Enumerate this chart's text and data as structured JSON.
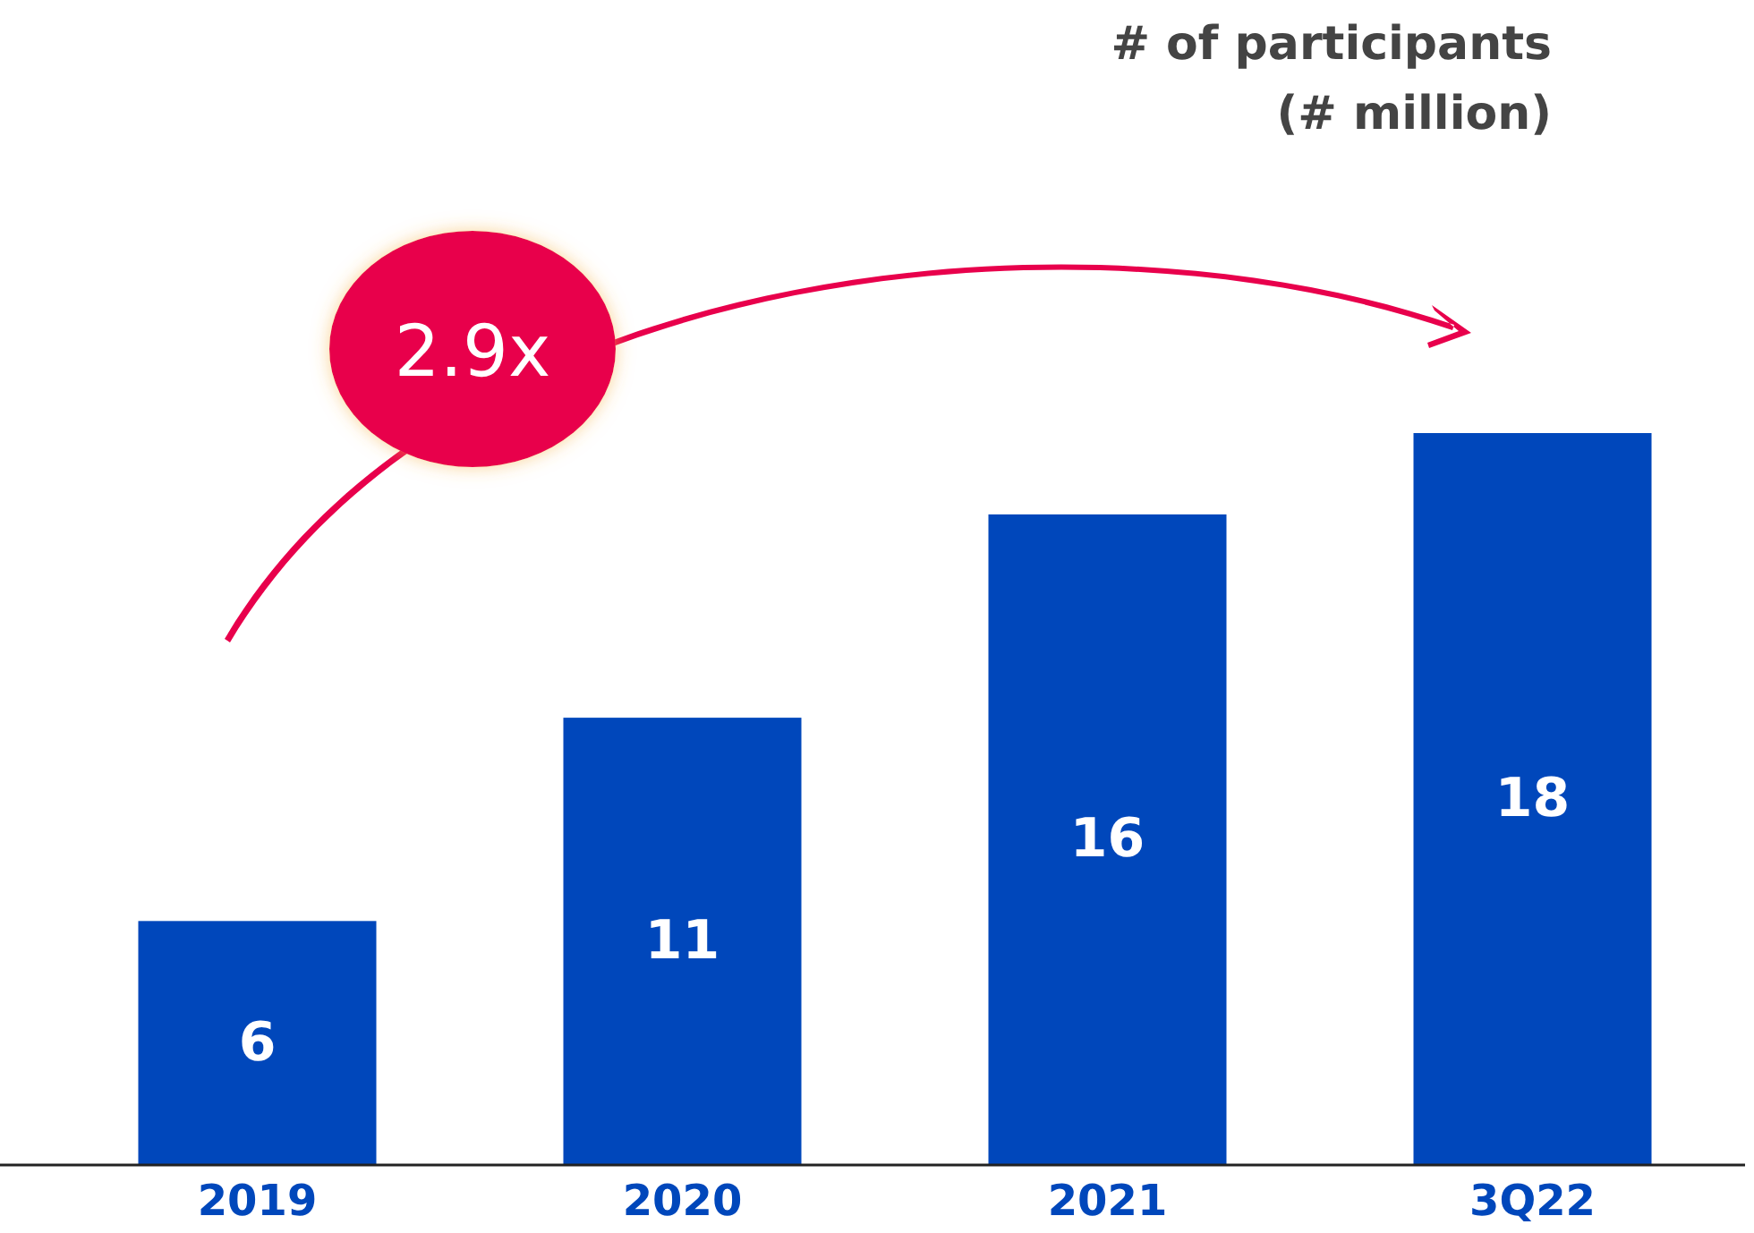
{
  "chart_data": {
    "type": "bar",
    "title": "# of participants",
    "subtitle": "(# million)",
    "categories": [
      "2019",
      "2020",
      "2021",
      "3Q22"
    ],
    "values": [
      6,
      11,
      16,
      18
    ],
    "color": "#0047bb",
    "data_labels": true,
    "annotations": [
      "2.9x"
    ]
  }
}
